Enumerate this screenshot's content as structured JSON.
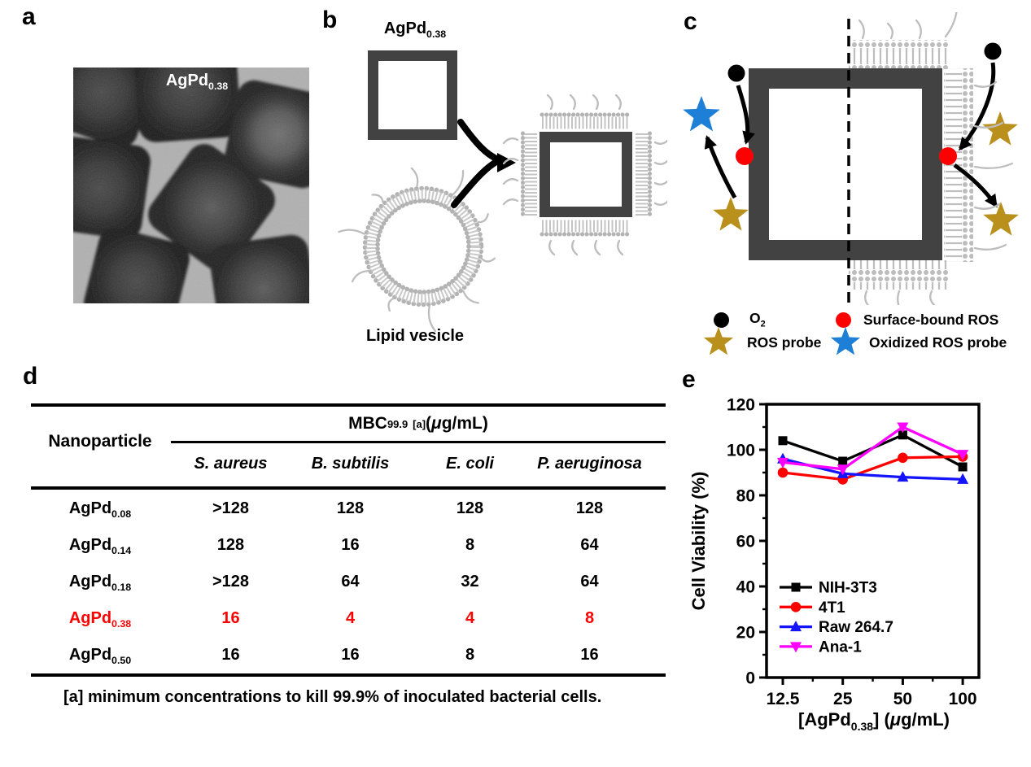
{
  "figure": {
    "panels": {
      "a": {
        "label": "a",
        "material": {
          "prefix": "AgPd",
          "sub": "0.38"
        }
      },
      "b": {
        "label": "b",
        "nanocage": {
          "prefix": "AgPd",
          "sub": "0.38"
        },
        "vesicle_label": "Lipid vesicle"
      },
      "c": {
        "label": "c",
        "legend": [
          {
            "icon": "black-dot-icon",
            "prefix": "O",
            "sub": "2"
          },
          {
            "icon": "red-dot-icon",
            "label": "Surface-bound ROS"
          },
          {
            "icon": "gold-star-icon",
            "label": "ROS probe"
          },
          {
            "icon": "blue-star-icon",
            "label": "Oxidized ROS probe"
          }
        ]
      },
      "d": {
        "label": "d",
        "table": {
          "row_header": "Nanoparticle",
          "group_header": {
            "prefix": "MBC",
            "sub": "99.9",
            "sup": "[a]",
            "unit_open": " (",
            "unit_mu": "μ",
            "unit_rest": "g/mL)"
          },
          "columns": [
            "S. aureus",
            "B. subtilis",
            "E. coli",
            "P. aeruginosa"
          ],
          "rows": [
            {
              "prefix": "AgPd",
              "sub": "0.08",
              "values": [
                ">128",
                "128",
                "128",
                "128"
              ],
              "highlight": false
            },
            {
              "prefix": "AgPd",
              "sub": "0.14",
              "values": [
                "128",
                "16",
                "8",
                "64"
              ],
              "highlight": false
            },
            {
              "prefix": "AgPd",
              "sub": "0.18",
              "values": [
                ">128",
                "64",
                "32",
                "64"
              ],
              "highlight": false
            },
            {
              "prefix": "AgPd",
              "sub": "0.38",
              "values": [
                "16",
                "4",
                "4",
                "8"
              ],
              "highlight": true
            },
            {
              "prefix": "AgPd",
              "sub": "0.50",
              "values": [
                "16",
                "16",
                "8",
                "16"
              ],
              "highlight": false
            }
          ],
          "footnote": "[a] minimum concentrations to kill 99.9% of inoculated bacterial cells."
        }
      },
      "e": {
        "label": "e"
      }
    },
    "colors": {
      "frame_dark": "#424242",
      "lipid_gray": "#bdbdbd",
      "accent_red": "#ff0000",
      "gold_star": "#b8901b",
      "blue_star": "#1e7fd6"
    }
  },
  "chart_data": {
    "type": "line",
    "title": "",
    "x": [
      12.5,
      25,
      50,
      100
    ],
    "x_scale": "log2",
    "xticks": [
      "12.5",
      "25",
      "50",
      "100"
    ],
    "yticks": [
      0,
      20,
      40,
      60,
      80,
      100,
      120
    ],
    "ylim": [
      0,
      120
    ],
    "ylabel": "Cell Viability (%)",
    "xlabel": {
      "prefix": "[AgPd",
      "sub": "0.38",
      "mid": "] (",
      "mu": "μ",
      "rest": "g/mL)"
    },
    "legend_position": "inside-bottom-left",
    "grid": false,
    "series": [
      {
        "name": "NIH-3T3",
        "color": "#000000",
        "marker": "square",
        "values": [
          104,
          95,
          106.5,
          92.5
        ]
      },
      {
        "name": "4T1",
        "color": "#ff0000",
        "marker": "circle",
        "values": [
          90,
          87,
          96.5,
          97
        ]
      },
      {
        "name": "Raw 264.7",
        "color": "#1414ff",
        "marker": "triangle-up",
        "values": [
          96,
          89.5,
          88,
          87
        ]
      },
      {
        "name": "Ana-1",
        "color": "#ff00ff",
        "marker": "triangle-down",
        "values": [
          94.5,
          91.5,
          110,
          98
        ]
      }
    ]
  }
}
